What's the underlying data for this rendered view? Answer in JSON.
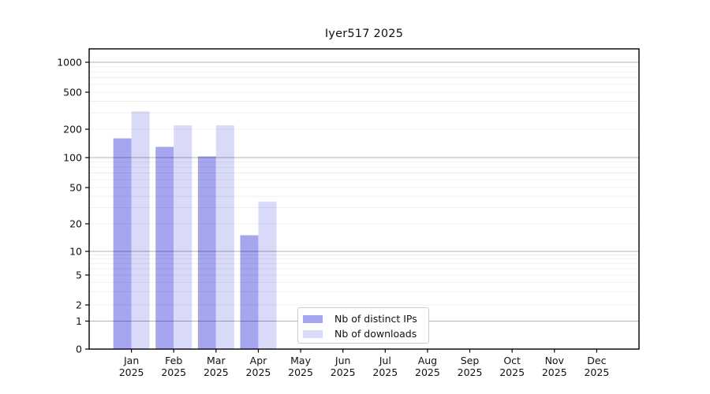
{
  "chart_data": {
    "type": "bar",
    "title": "Iyer517 2025",
    "categories": [
      "Jan",
      "Feb",
      "Mar",
      "Apr",
      "May",
      "Jun",
      "Jul",
      "Aug",
      "Sep",
      "Oct",
      "Nov",
      "Dec"
    ],
    "year_label": "2025",
    "series": [
      {
        "name": "Nb of distinct IPs",
        "color": "#a5a5f0",
        "values": [
          160,
          130,
          103,
          15,
          0,
          0,
          0,
          0,
          0,
          0,
          0,
          0
        ]
      },
      {
        "name": "Nb of downloads",
        "color": "#d9d9f8",
        "values": [
          310,
          220,
          220,
          35,
          0,
          0,
          0,
          0,
          0,
          0,
          0,
          0
        ]
      }
    ],
    "yticks": [
      0,
      1,
      2,
      5,
      10,
      20,
      50,
      100,
      200,
      500,
      1000
    ],
    "yscale": "symlog",
    "ylim": [
      0,
      1390
    ],
    "xlabel": "",
    "ylabel": "",
    "grid": "horizontal; faint minor lines at 2-9 of each decade, darker lines at 1/10/100/1000",
    "legend_position": "inside plot, lower center-right",
    "colors": {
      "major_grid": "rgba(0,0,0,0.30)",
      "minor_grid": "rgba(0,0,0,0.075)",
      "frame": "#000000",
      "text": "#111111"
    }
  }
}
